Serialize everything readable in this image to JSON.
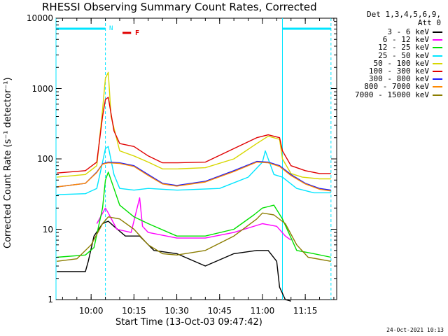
{
  "chart_data": {
    "type": "line",
    "title": "RHESSI Observing Summary Count Rates, Corrected",
    "ylabel": "Corrected Count Rate (s⁻¹ detector⁻¹)",
    "xlabel": "Start Time (13-Oct-03 09:47:42)",
    "y_scale": "log",
    "ylim": [
      1,
      10000
    ],
    "xlim": [
      "09:47:42",
      "11:26:00"
    ],
    "y_ticks": [
      "1",
      "10",
      "100",
      "1000",
      "10000"
    ],
    "x_ticks": [
      "10:00",
      "10:15",
      "10:30",
      "10:45",
      "11:00",
      "11:15"
    ],
    "legend_header": [
      "Det 1,3,4,5,6,9,",
      "Att 0"
    ],
    "legend_position": "right",
    "series": [
      {
        "name": "3 - 6 keV",
        "color": "#000000",
        "x": [
          "09:48",
          "09:58",
          "09:59",
          "10:01",
          "10:04",
          "10:06",
          "10:08",
          "10:12",
          "10:17",
          "10:22",
          "10:30",
          "10:40",
          "10:50",
          "10:58",
          "11:02",
          "11:05",
          "11:06",
          "11:08",
          "11:10"
        ],
        "y": [
          2.5,
          2.5,
          3.5,
          8,
          12,
          13,
          11,
          8,
          8,
          5,
          4.5,
          3,
          4.5,
          5,
          5,
          3.5,
          1.5,
          1,
          0.9
        ]
      },
      {
        "name": "6 - 12 keV",
        "color": "#ff00ff",
        "x": [
          "10:02",
          "10:05",
          "10:06",
          "10:09",
          "10:14",
          "10:17",
          "10:18",
          "10:20",
          "10:30",
          "10:40",
          "10:50",
          "11:00",
          "11:05",
          "11:08",
          "11:10"
        ],
        "y": [
          12,
          20,
          17,
          10,
          9,
          28,
          11,
          9,
          7.5,
          7.5,
          9,
          12,
          11,
          8,
          7
        ]
      },
      {
        "name": "12 - 25 keV",
        "color": "#00e000",
        "x": [
          "09:48",
          "09:58",
          "10:01",
          "10:04",
          "10:05",
          "10:06",
          "10:08",
          "10:10",
          "10:15",
          "10:20",
          "10:30",
          "10:40",
          "10:50",
          "10:57",
          "11:00",
          "11:04",
          "11:07",
          "11:12",
          "11:18",
          "11:24"
        ],
        "y": [
          4,
          4.3,
          5.5,
          20,
          50,
          65,
          38,
          22,
          15,
          12,
          8,
          8,
          10,
          16,
          20,
          22,
          14,
          5,
          4.5,
          4
        ]
      },
      {
        "name": "25 - 50 keV",
        "color": "#00e5ff",
        "x": [
          "09:48",
          "09:58",
          "10:02",
          "10:04",
          "10:05",
          "10:06",
          "10:08",
          "10:10",
          "10:15",
          "10:20",
          "10:30",
          "10:45",
          "10:55",
          "11:00",
          "11:01",
          "11:04",
          "11:07",
          "11:12",
          "11:18",
          "11:24"
        ],
        "y": [
          31,
          32,
          38,
          90,
          140,
          150,
          60,
          38,
          36,
          38,
          36,
          38,
          55,
          90,
          130,
          60,
          55,
          38,
          33,
          33
        ]
      },
      {
        "name": "50 - 100 keV",
        "color": "#d7d700",
        "x": [
          "09:48",
          "09:58",
          "10:02",
          "10:04",
          "10:05",
          "10:06",
          "10:07",
          "10:10",
          "10:15",
          "10:20",
          "10:25",
          "10:30",
          "10:40",
          "10:50",
          "10:58",
          "11:02",
          "11:06",
          "11:07",
          "11:10",
          "11:14",
          "11:20",
          "11:24"
        ],
        "y": [
          55,
          60,
          80,
          500,
          1400,
          1700,
          400,
          130,
          110,
          90,
          72,
          72,
          75,
          100,
          165,
          210,
          190,
          100,
          62,
          55,
          52,
          52
        ]
      },
      {
        "name": "100 - 300 keV",
        "color": "#e00000",
        "x": [
          "09:48",
          "09:58",
          "10:02",
          "10:04",
          "10:05",
          "10:06",
          "10:08",
          "10:10",
          "10:15",
          "10:20",
          "10:25",
          "10:30",
          "10:40",
          "10:50",
          "10:58",
          "11:02",
          "11:06",
          "11:07",
          "11:10",
          "11:15",
          "11:20",
          "11:24"
        ],
        "y": [
          63,
          68,
          90,
          400,
          700,
          750,
          250,
          165,
          150,
          110,
          88,
          88,
          90,
          140,
          200,
          220,
          200,
          130,
          80,
          68,
          62,
          62
        ]
      },
      {
        "name": "300 - 800 keV",
        "color": "#1a1aff",
        "x": [
          "09:48",
          "09:58",
          "10:02",
          "10:04",
          "10:06",
          "10:10",
          "10:15",
          "10:20",
          "10:25",
          "10:30",
          "10:40",
          "10:50",
          "10:58",
          "11:02",
          "11:06",
          "11:10",
          "11:15",
          "11:20",
          "11:24"
        ],
        "y": [
          40,
          45,
          65,
          85,
          90,
          88,
          80,
          60,
          45,
          42,
          48,
          68,
          92,
          90,
          80,
          60,
          45,
          38,
          36
        ]
      },
      {
        "name": "800 - 7000 keV",
        "color": "#ff8800",
        "x": [
          "09:48",
          "09:58",
          "10:02",
          "10:04",
          "10:06",
          "10:10",
          "10:15",
          "10:20",
          "10:25",
          "10:30",
          "10:40",
          "10:50",
          "10:58",
          "11:02",
          "11:06",
          "11:10",
          "11:15",
          "11:20",
          "11:24"
        ],
        "y": [
          40,
          45,
          64,
          84,
          88,
          86,
          78,
          58,
          44,
          41,
          47,
          66,
          90,
          88,
          78,
          58,
          44,
          37,
          35
        ]
      },
      {
        "name": "7000 - 15000 keV",
        "color": "#8b7d00",
        "x": [
          "09:48",
          "09:55",
          "10:00",
          "10:04",
          "10:06",
          "10:10",
          "10:15",
          "10:20",
          "10:25",
          "10:30",
          "10:40",
          "10:50",
          "10:58",
          "11:00",
          "11:04",
          "11:08",
          "11:12",
          "11:16",
          "11:24"
        ],
        "y": [
          3.5,
          3.8,
          6,
          12,
          15,
          14,
          10,
          6,
          4.5,
          4.3,
          5,
          8,
          14,
          17,
          16,
          12,
          6,
          4,
          3.5
        ]
      }
    ],
    "markers": [
      {
        "label": "N",
        "color": "#00e5ff",
        "type": "night",
        "x": [
          "09:47:42",
          "10:05"
        ]
      },
      {
        "label": "N",
        "color": "#00e5ff",
        "type": "night",
        "x": [
          "11:07",
          "11:24"
        ]
      },
      {
        "label": "F",
        "color": "#e00000",
        "type": "flare",
        "x": [
          "10:11",
          "10:14"
        ]
      }
    ]
  },
  "footer_stamp": "24-Oct-2021 10:13"
}
